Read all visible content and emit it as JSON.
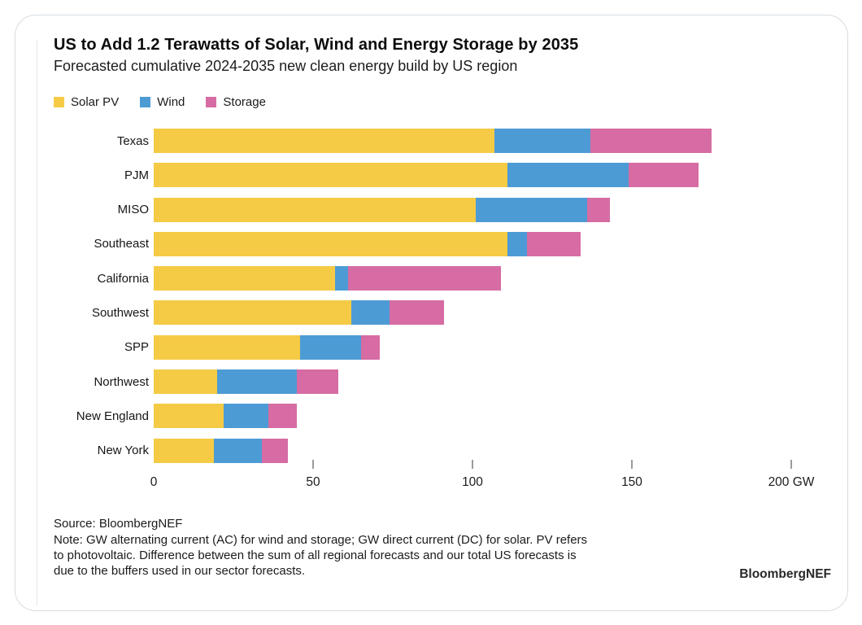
{
  "header": {
    "title": "US to Add 1.2 Terawatts of Solar, Wind and Energy Storage by 2035",
    "subtitle": "Forecasted cumulative 2024-2035 new clean energy build by US region"
  },
  "legend": [
    {
      "label": "Solar PV",
      "color": "#F5CB45"
    },
    {
      "label": "Wind",
      "color": "#4D9BD5"
    },
    {
      "label": "Storage",
      "color": "#D66CA3"
    }
  ],
  "chart_data": {
    "type": "bar",
    "orientation": "horizontal",
    "stacked": true,
    "unit": "GW",
    "title": "US to Add 1.2 Terawatts of Solar, Wind and Energy Storage by 2035",
    "subtitle": "Forecasted cumulative 2024-2035 new clean energy build by US region",
    "categories": [
      "Texas",
      "PJM",
      "MISO",
      "Southeast",
      "California",
      "Southwest",
      "SPP",
      "Northwest",
      "New England",
      "New York"
    ],
    "series": [
      {
        "name": "Solar PV",
        "color": "#F5CB45",
        "values": [
          107,
          111,
          101,
          111,
          57,
          62,
          46,
          20,
          22,
          19
        ]
      },
      {
        "name": "Wind",
        "color": "#4D9BD5",
        "values": [
          30,
          38,
          35,
          6,
          4,
          12,
          19,
          25,
          14,
          15
        ]
      },
      {
        "name": "Storage",
        "color": "#D66CA3",
        "values": [
          38,
          22,
          7,
          17,
          48,
          17,
          6,
          13,
          9,
          8
        ]
      }
    ],
    "totals": [
      175,
      171,
      143,
      134,
      109,
      91,
      71,
      58,
      45,
      42
    ],
    "xlim": [
      0,
      215
    ],
    "x_ticks": [
      {
        "gw": 0,
        "label": "0"
      },
      {
        "gw": 50,
        "label": "50"
      },
      {
        "gw": 100,
        "label": "100"
      },
      {
        "gw": 150,
        "label": "150"
      },
      {
        "gw": 200,
        "label": "200 GW"
      }
    ],
    "grid": false,
    "legend_position": "top-left"
  },
  "footer": {
    "source": "Source: BloombergNEF",
    "note": "Note: GW alternating current (AC) for wind and storage; GW direct current (DC) for solar. PV refers\nto photovoltaic. Difference between the sum of all regional forecasts and our total US forecasts is\ndue to the buffers used in our sector forecasts.",
    "brand": "BloombergNEF"
  }
}
